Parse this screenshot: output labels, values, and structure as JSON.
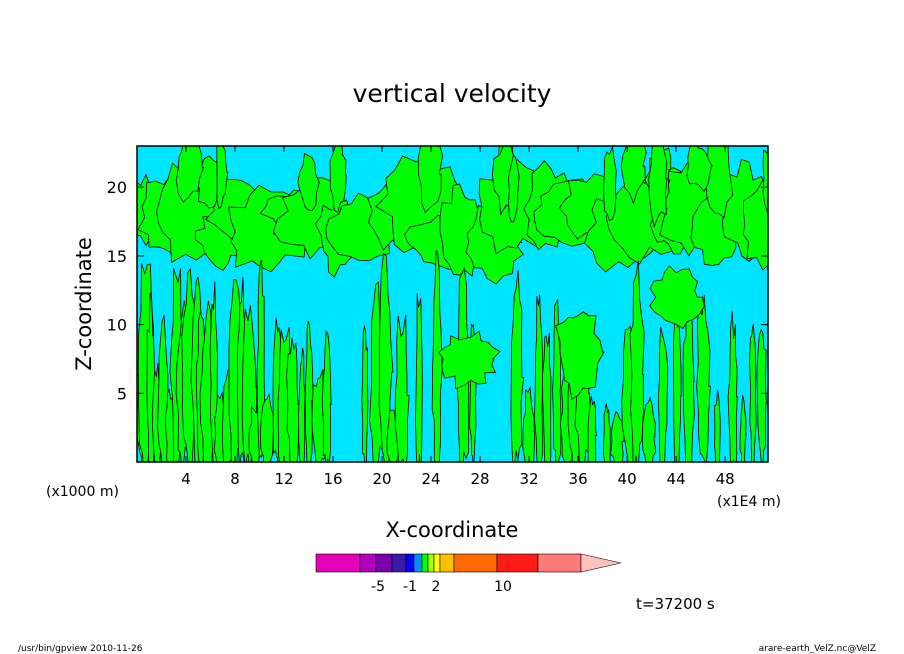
{
  "chart_data": {
    "type": "heatmap",
    "title": "vertical velocity",
    "xlabel": "X-coordinate",
    "ylabel": "Z-coordinate",
    "x_unit_left": "(x1000 m)",
    "x_unit_right": "(x1E4 m)",
    "xlim": [
      0,
      51.5
    ],
    "ylim": [
      0,
      23
    ],
    "x_ticks": [
      4,
      8,
      12,
      16,
      20,
      24,
      28,
      32,
      36,
      40,
      44,
      48
    ],
    "y_ticks": [
      5,
      10,
      15,
      20
    ],
    "field_colors": {
      "positive": "#00ff00",
      "negative": "#00e5ff",
      "contour": "#000000"
    },
    "colorbar": {
      "colors": [
        "#e600b8",
        "#b000c0",
        "#7a00b0",
        "#3a1aa8",
        "#0000ff",
        "#0090ff",
        "#00ff00",
        "#a0ff00",
        "#ffff00",
        "#ffc000",
        "#ff6a00",
        "#ff1a1a",
        "#ff7a78",
        "#ffc0c0"
      ],
      "labels": [
        "-5",
        "-1",
        "2",
        "10"
      ],
      "extend": "max"
    },
    "annotation": "t=37200 s"
  },
  "footer": {
    "left": "/usr/bin/gpview   2010-11-26",
    "right": "arare-earth_VelZ.nc@VelZ"
  }
}
